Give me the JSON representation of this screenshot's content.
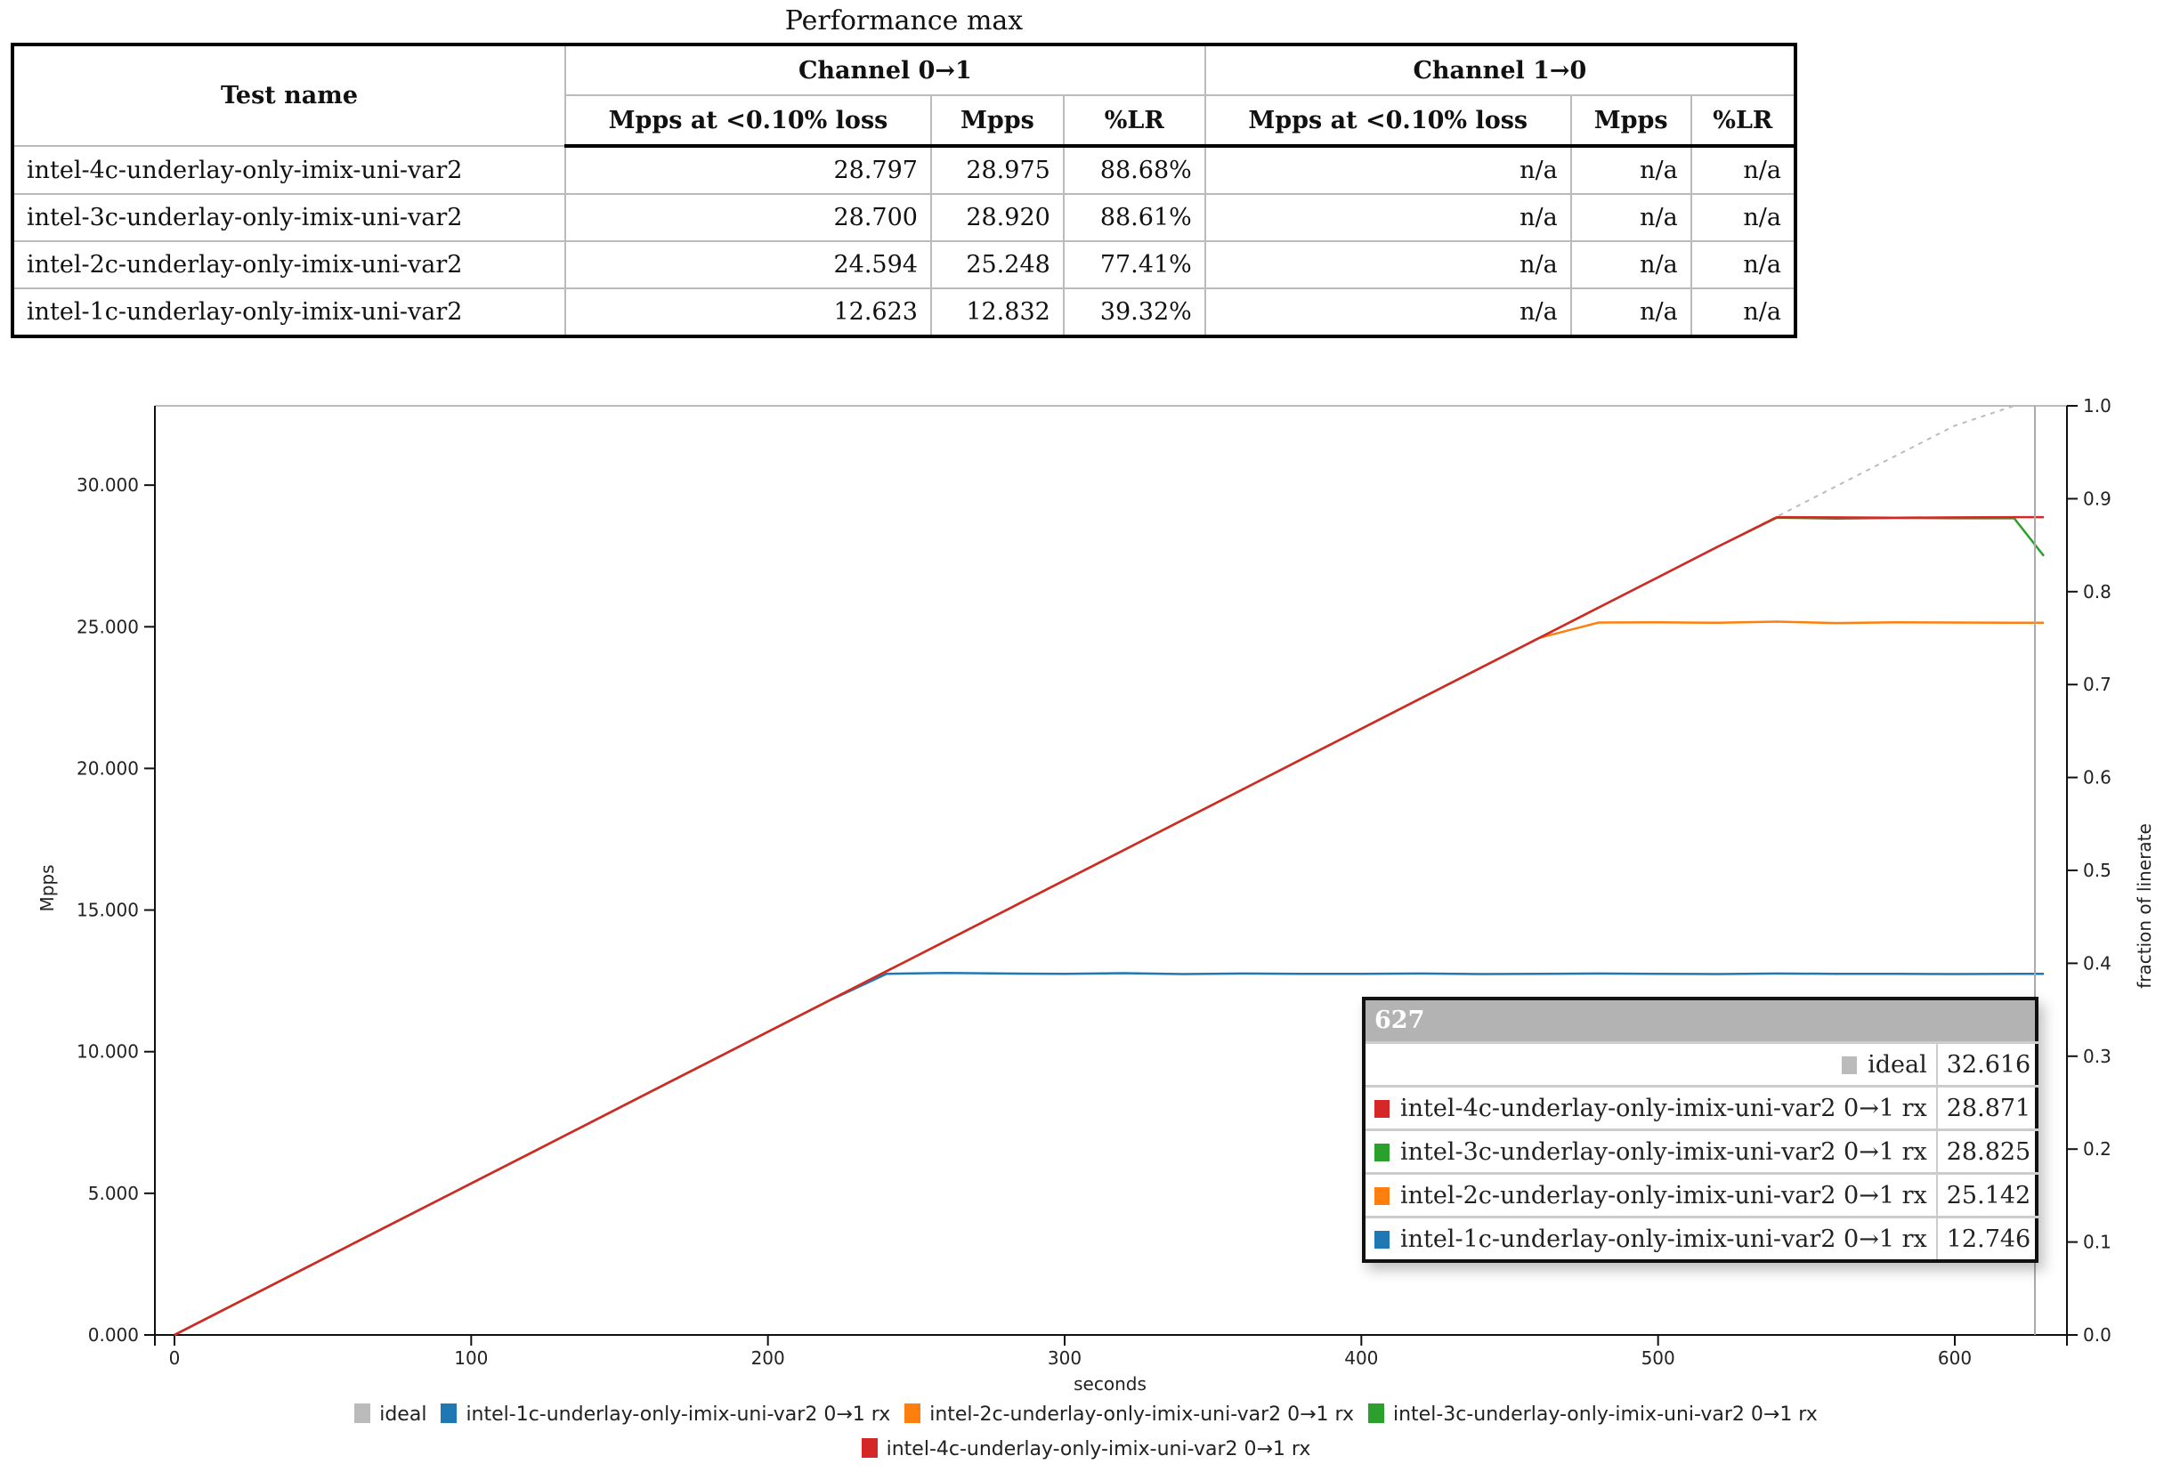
{
  "table": {
    "title": "Performance max",
    "header_test_name": "Test name",
    "channels": [
      "Channel 0→1",
      "Channel 1→0"
    ],
    "subheaders": [
      "Mpps at <0.10% loss",
      "Mpps",
      "%LR",
      "Mpps at <0.10% loss",
      "Mpps",
      "%LR"
    ],
    "rows": [
      {
        "name": "intel-4c-underlay-only-imix-uni-var2",
        "cells": [
          "28.797",
          "28.975",
          "88.68%",
          "n/a",
          "n/a",
          "n/a"
        ]
      },
      {
        "name": "intel-3c-underlay-only-imix-uni-var2",
        "cells": [
          "28.700",
          "28.920",
          "88.61%",
          "n/a",
          "n/a",
          "n/a"
        ]
      },
      {
        "name": "intel-2c-underlay-only-imix-uni-var2",
        "cells": [
          "24.594",
          "25.248",
          "77.41%",
          "n/a",
          "n/a",
          "n/a"
        ]
      },
      {
        "name": "intel-1c-underlay-only-imix-uni-var2",
        "cells": [
          "12.623",
          "12.832",
          "39.32%",
          "n/a",
          "n/a",
          "n/a"
        ]
      }
    ]
  },
  "tooltip": {
    "x_value": "627",
    "rows": [
      {
        "label": "ideal",
        "value": "32.616",
        "color": "#bbbbbb"
      },
      {
        "label": "intel-4c-underlay-only-imix-uni-var2 0→1 rx",
        "value": "28.871",
        "color": "#d62728"
      },
      {
        "label": "intel-3c-underlay-only-imix-uni-var2 0→1 rx",
        "value": "28.825",
        "color": "#2ca02c"
      },
      {
        "label": "intel-2c-underlay-only-imix-uni-var2 0→1 rx",
        "value": "25.142",
        "color": "#ff7f0e"
      },
      {
        "label": "intel-1c-underlay-only-imix-uni-var2 0→1 rx",
        "value": "12.746",
        "color": "#1f77b4"
      }
    ]
  },
  "chart_data": {
    "type": "line",
    "xlabel": "seconds",
    "ylabel": "Mpps",
    "y2label": "fraction of linerate",
    "xlim": [
      -6.6,
      637.8
    ],
    "ylim": [
      0,
      32.8
    ],
    "y2lim": [
      0,
      1
    ],
    "xticks": [
      "0",
      "100",
      "200",
      "300",
      "400",
      "500",
      "600"
    ],
    "yticks": [
      "0.000",
      "5.000",
      "10.000",
      "15.000",
      "20.000",
      "25.000",
      "30.000"
    ],
    "y2ticks": [
      "0.0",
      "0.1",
      "0.2",
      "0.3",
      "0.4",
      "0.5",
      "0.6",
      "0.7",
      "0.8",
      "0.9",
      "1.0"
    ],
    "hover_x": 627,
    "grid": false,
    "legend_position": "bottom",
    "x": [
      0,
      20,
      40,
      60,
      80,
      100,
      120,
      140,
      160,
      180,
      200,
      220,
      240,
      260,
      280,
      300,
      320,
      340,
      360,
      380,
      400,
      420,
      440,
      460,
      480,
      500,
      520,
      540,
      560,
      580,
      600,
      620,
      630
    ],
    "series": [
      {
        "name": "ideal",
        "color": "#bbbbbb",
        "dashed": true,
        "values": [
          0,
          1.07,
          2.14,
          3.21,
          4.28,
          5.35,
          6.42,
          7.49,
          8.56,
          9.63,
          10.7,
          11.77,
          12.84,
          13.91,
          14.98,
          16.05,
          17.12,
          18.19,
          19.26,
          20.33,
          21.4,
          22.47,
          23.54,
          24.61,
          25.68,
          26.75,
          27.82,
          28.89,
          29.96,
          31.03,
          32.1,
          32.8,
          32.8
        ]
      },
      {
        "name": "intel-1c-underlay-only-imix-uni-var2 0→1 rx",
        "color": "#1f77b4",
        "values": [
          0,
          1.07,
          2.14,
          3.21,
          4.28,
          5.35,
          6.42,
          7.49,
          8.56,
          9.63,
          10.7,
          11.77,
          12.75,
          12.78,
          12.76,
          12.75,
          12.77,
          12.74,
          12.76,
          12.75,
          12.75,
          12.76,
          12.74,
          12.75,
          12.76,
          12.75,
          12.74,
          12.76,
          12.75,
          12.75,
          12.74,
          12.75,
          12.75
        ]
      },
      {
        "name": "intel-2c-underlay-only-imix-uni-var2 0→1 rx",
        "color": "#ff7f0e",
        "values": [
          0,
          1.07,
          2.14,
          3.21,
          4.28,
          5.35,
          6.42,
          7.49,
          8.56,
          9.63,
          10.7,
          11.77,
          12.84,
          13.91,
          14.98,
          16.05,
          17.12,
          18.19,
          19.26,
          20.33,
          21.4,
          22.47,
          23.54,
          24.61,
          25.15,
          25.16,
          25.14,
          25.18,
          25.13,
          25.16,
          25.15,
          25.14,
          25.14
        ]
      },
      {
        "name": "intel-3c-underlay-only-imix-uni-var2 0→1 rx",
        "color": "#2ca02c",
        "values": [
          0,
          1.07,
          2.14,
          3.21,
          4.28,
          5.35,
          6.42,
          7.49,
          8.56,
          9.63,
          10.7,
          11.77,
          12.84,
          13.91,
          14.98,
          16.05,
          17.12,
          18.19,
          19.26,
          20.33,
          21.4,
          22.47,
          23.54,
          24.61,
          25.68,
          26.75,
          27.82,
          28.85,
          28.82,
          28.84,
          28.83,
          28.83,
          27.5
        ]
      },
      {
        "name": "intel-4c-underlay-only-imix-uni-var2 0→1 rx",
        "color": "#d62728",
        "values": [
          0,
          1.07,
          2.14,
          3.21,
          4.28,
          5.35,
          6.42,
          7.49,
          8.56,
          9.63,
          10.7,
          11.77,
          12.84,
          13.91,
          14.98,
          16.05,
          17.12,
          18.19,
          19.26,
          20.33,
          21.4,
          22.47,
          23.54,
          24.61,
          25.68,
          26.75,
          27.82,
          28.87,
          28.86,
          28.85,
          28.86,
          28.87,
          28.87
        ]
      }
    ],
    "legend_order": [
      "ideal",
      "intel-1c-underlay-only-imix-uni-var2 0→1 rx",
      "intel-2c-underlay-only-imix-uni-var2 0→1 rx",
      "intel-3c-underlay-only-imix-uni-var2 0→1 rx",
      "intel-4c-underlay-only-imix-uni-var2 0→1 rx"
    ]
  }
}
